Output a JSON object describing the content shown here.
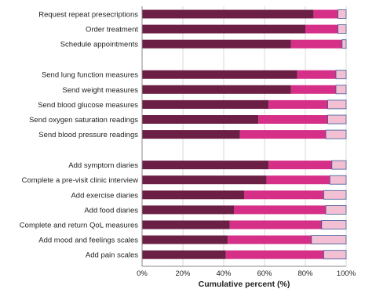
{
  "chart_data": {
    "type": "bar",
    "orientation": "horizontal",
    "stacked": true,
    "xlabel": "Cumulative percent (%)",
    "xlim": [
      0,
      100
    ],
    "x_ticks": [
      0,
      20,
      40,
      60,
      80,
      100
    ],
    "x_tick_labels": [
      "0%",
      "20%",
      "40%",
      "60%",
      "80%",
      "100%"
    ],
    "grid": true,
    "legend": "none",
    "groups": [
      {
        "categories": [
          "Request repeat presecriptions",
          "Order treatment",
          "Schedule appointments"
        ],
        "series": [
          {
            "values": [
              84,
              80,
              73
            ],
            "color": "#6b1f44"
          },
          {
            "values": [
              12,
              16,
              25
            ],
            "color": "#d52f87"
          },
          {
            "values": [
              4,
              4,
              2
            ],
            "color": "#f3bfd3"
          }
        ]
      },
      {
        "categories": [
          "Send lung function measures",
          "Send weight measures",
          "Send blood glucose measures",
          "Send oxygen saturation readings",
          "Send blood pressure readings"
        ],
        "series": [
          {
            "values": [
              76,
              73,
              62,
              57,
              48
            ],
            "color": "#6b1f44"
          },
          {
            "values": [
              19,
              22,
              29,
              34,
              42
            ],
            "color": "#d52f87"
          },
          {
            "values": [
              5,
              5,
              9,
              9,
              10
            ],
            "color": "#f3bfd3"
          }
        ]
      },
      {
        "categories": [
          "Add symptom diaries",
          "Complete a pre-visit clinic interview",
          "Add exercise diaries",
          "Add food diaries",
          "Complete and return QoL measures",
          "Add mood and feelings scales",
          "Add pain scales"
        ],
        "series": [
          {
            "values": [
              62,
              61,
              50,
              45,
              43,
              42,
              41
            ],
            "color": "#6b1f44"
          },
          {
            "values": [
              31,
              31,
              39,
              45,
              45,
              41,
              48
            ],
            "color": "#d52f87"
          },
          {
            "values": [
              7,
              8,
              11,
              10,
              12,
              17,
              11
            ],
            "color": "#f3bfd3"
          }
        ]
      }
    ]
  }
}
